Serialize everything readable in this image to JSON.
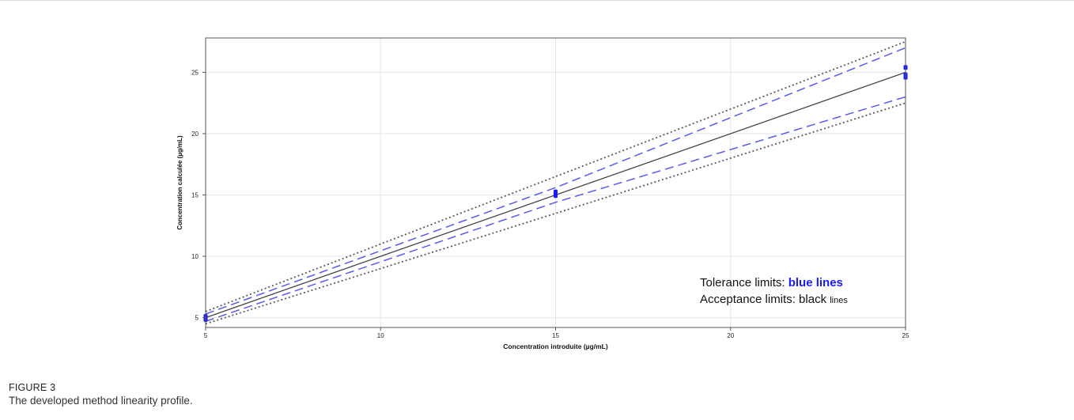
{
  "figure": {
    "label": "FIGURE 3",
    "caption": "The developed method linearity profile."
  },
  "chart_data": {
    "type": "line",
    "xlabel": "Concentration introduite (µg/mL)",
    "ylabel": "Concentration calculée (µg/mL)",
    "xlim": [
      5,
      25
    ],
    "ylim": [
      4.2,
      27.8
    ],
    "xticks": [
      5,
      10,
      15,
      20,
      25
    ],
    "yticks": [
      5,
      10,
      15,
      20,
      25
    ],
    "grid": true,
    "annotations": {
      "tolerance_prefix": "Tolerance limits: ",
      "tolerance_highlight": "blue lines",
      "acceptance_prefix": "Acceptance limits: black ",
      "acceptance_suffix": "lines"
    },
    "series": [
      {
        "key": "identity",
        "style": "solid",
        "color": "#444444",
        "x": [
          5,
          25
        ],
        "y": [
          5,
          25
        ]
      },
      {
        "key": "acceptance_upper",
        "style": "dotted",
        "color": "#5a5a5a",
        "x": [
          5,
          25
        ],
        "y": [
          5.5,
          27.5
        ]
      },
      {
        "key": "acceptance_lower",
        "style": "dotted",
        "color": "#5a5a5a",
        "x": [
          5,
          25
        ],
        "y": [
          4.5,
          22.5
        ]
      },
      {
        "key": "tolerance_upper",
        "style": "dashed",
        "color": "#5b5bea",
        "x": [
          5,
          15,
          25
        ],
        "y": [
          5.3,
          15.6,
          27.0
        ]
      },
      {
        "key": "tolerance_lower",
        "style": "dashed",
        "color": "#5b5bea",
        "x": [
          5,
          15,
          25
        ],
        "y": [
          4.7,
          14.4,
          23.0
        ]
      }
    ],
    "points": {
      "color": "#1a1aff",
      "x": [
        5,
        5,
        5,
        15,
        15,
        15,
        25,
        25,
        25
      ],
      "y": [
        4.85,
        5.0,
        5.1,
        14.95,
        15.1,
        15.25,
        24.6,
        24.8,
        25.4
      ]
    }
  }
}
